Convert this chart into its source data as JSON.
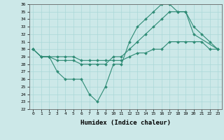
{
  "xlabel": "Humidex (Indice chaleur)",
  "x": [
    0,
    1,
    2,
    3,
    4,
    5,
    6,
    7,
    8,
    9,
    10,
    11,
    12,
    13,
    14,
    15,
    16,
    17,
    18,
    19,
    20,
    21,
    22,
    23
  ],
  "line_top": [
    30,
    29,
    29,
    27,
    26,
    26,
    26,
    24,
    23,
    25,
    28,
    28,
    31,
    33,
    34,
    35,
    36,
    36,
    35,
    35,
    32,
    null,
    null,
    30
  ],
  "line_mid": [
    30,
    29,
    29,
    28.5,
    28.5,
    28.5,
    28,
    28,
    28,
    28,
    29,
    29,
    30,
    31,
    32,
    33,
    34,
    35,
    35,
    35,
    33,
    32,
    31,
    30
  ],
  "line_bot": [
    30,
    29,
    29,
    29,
    29,
    29,
    28.5,
    28.5,
    28.5,
    28.5,
    28.5,
    28.5,
    29,
    29.5,
    29.5,
    30,
    30,
    31,
    31,
    31,
    31,
    31,
    30,
    30
  ],
  "ylim": [
    22,
    36
  ],
  "yticks": [
    22,
    23,
    24,
    25,
    26,
    27,
    28,
    29,
    30,
    31,
    32,
    33,
    34,
    35,
    36
  ],
  "xticks": [
    0,
    1,
    2,
    3,
    4,
    5,
    6,
    7,
    8,
    9,
    10,
    11,
    12,
    13,
    14,
    15,
    16,
    17,
    18,
    19,
    20,
    21,
    22,
    23
  ],
  "line_color": "#2e8b75",
  "bg_color": "#cce8e8",
  "grid_color": "#aad8d8",
  "marker": "D",
  "marker_size": 2.0,
  "linewidth": 0.8
}
